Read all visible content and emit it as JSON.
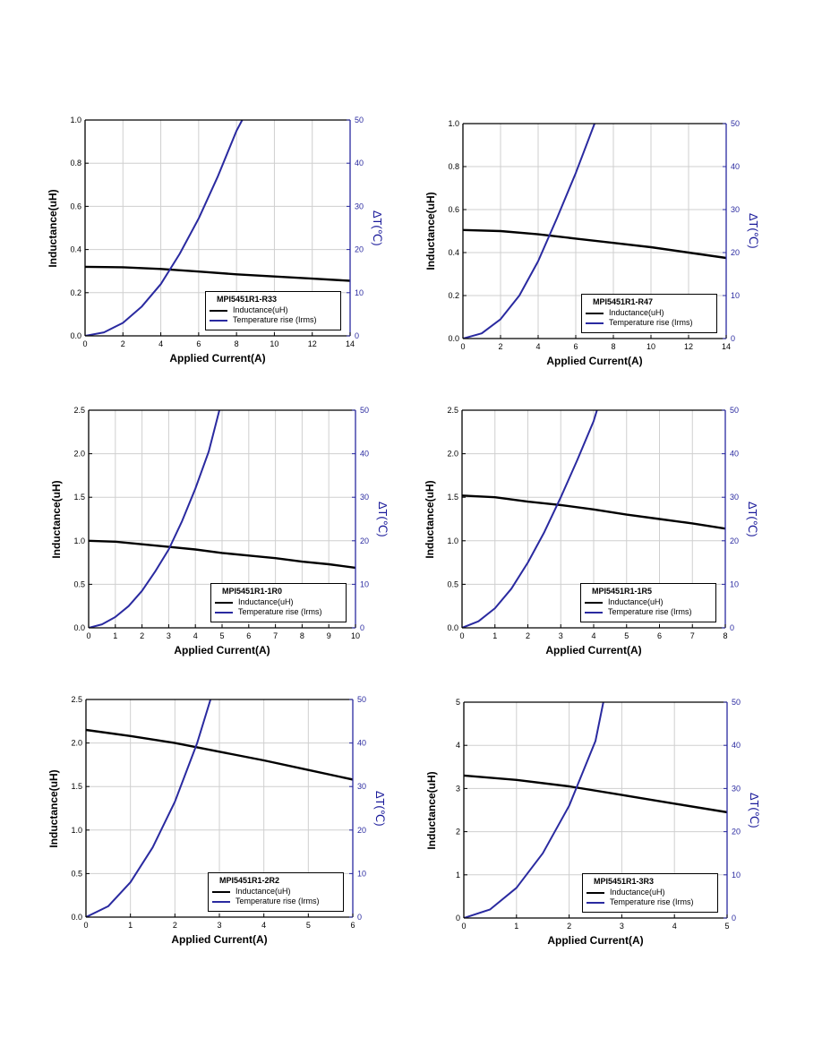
{
  "chart_data": [
    {
      "type": "line",
      "legend_title": "MPI5451R1-R33",
      "xlabel": "Applied Current(A)",
      "ylabel": "Inductance(uH)",
      "y2label": "∆T(℃)",
      "xlim": [
        0,
        14
      ],
      "xticks": [
        0,
        2,
        4,
        6,
        8,
        10,
        12,
        14
      ],
      "ylim": [
        0,
        1.0
      ],
      "yticks": [
        "0.0",
        "0.2",
        "0.4",
        "0.6",
        "0.8",
        "1.0"
      ],
      "y2lim": [
        0,
        50
      ],
      "y2ticks": [
        "0",
        "10",
        "20",
        "30",
        "40",
        "50"
      ],
      "grid": true,
      "legend_position": "bottom-right",
      "series": [
        {
          "name": "Inductance(uH)",
          "axis": "left",
          "color": "#000000",
          "x": [
            0,
            2,
            4,
            6,
            8,
            10,
            12,
            14
          ],
          "y": [
            0.32,
            0.318,
            0.31,
            0.298,
            0.285,
            0.275,
            0.265,
            0.255
          ]
        },
        {
          "name": "Temperature rise (Irms)",
          "axis": "right",
          "color": "#2a2aa0",
          "x": [
            0,
            1,
            2,
            3,
            4,
            5,
            6,
            7,
            8,
            8.3
          ],
          "y": [
            0,
            0.8,
            3,
            6.8,
            12,
            19,
            27.2,
            36.8,
            47.5,
            50
          ]
        }
      ]
    },
    {
      "type": "line",
      "legend_title": "MPI5451R1-R47",
      "xlabel": "Applied Current(A)",
      "ylabel": "Inductance(uH)",
      "y2label": "∆T(℃)",
      "xlim": [
        0,
        14
      ],
      "xticks": [
        0,
        2,
        4,
        6,
        8,
        10,
        12,
        14
      ],
      "ylim": [
        0,
        1.0
      ],
      "yticks": [
        "0.0",
        "0.2",
        "0.4",
        "0.6",
        "0.8",
        "1.0"
      ],
      "y2lim": [
        0,
        50
      ],
      "y2ticks": [
        "0",
        "10",
        "20",
        "30",
        "40",
        "50"
      ],
      "grid": true,
      "legend_position": "bottom-right",
      "series": [
        {
          "name": "Inductance(uH)",
          "axis": "left",
          "color": "#000000",
          "x": [
            0,
            2,
            4,
            6,
            8,
            10,
            12,
            14
          ],
          "y": [
            0.505,
            0.5,
            0.485,
            0.465,
            0.445,
            0.425,
            0.4,
            0.375
          ]
        },
        {
          "name": "Temperature rise (Irms)",
          "axis": "right",
          "color": "#2a2aa0",
          "x": [
            0,
            1,
            2,
            3,
            4,
            5,
            6,
            7
          ],
          "y": [
            0,
            1.2,
            4.5,
            10,
            18,
            28,
            38.5,
            50
          ]
        }
      ]
    },
    {
      "type": "line",
      "legend_title": "MPI5451R1-1R0",
      "xlabel": "Applied Current(A)",
      "ylabel": "Inductance(uH)",
      "y2label": "∆T(℃)",
      "xlim": [
        0,
        10
      ],
      "xticks": [
        0,
        1,
        2,
        3,
        4,
        5,
        6,
        7,
        8,
        9,
        10
      ],
      "ylim": [
        0,
        2.5
      ],
      "yticks": [
        "0.0",
        "0.5",
        "1.0",
        "1.5",
        "2.0",
        "2.5"
      ],
      "y2lim": [
        0,
        50
      ],
      "y2ticks": [
        "0",
        "10",
        "20",
        "30",
        "40",
        "50"
      ],
      "grid": true,
      "legend_position": "bottom-right",
      "series": [
        {
          "name": "Inductance(uH)",
          "axis": "left",
          "color": "#000000",
          "x": [
            0,
            1,
            2,
            3,
            4,
            5,
            6,
            7,
            8,
            9,
            10
          ],
          "y": [
            1.0,
            0.99,
            0.96,
            0.93,
            0.9,
            0.86,
            0.83,
            0.8,
            0.76,
            0.73,
            0.69
          ]
        },
        {
          "name": "Temperature rise (Irms)",
          "axis": "right",
          "color": "#2a2aa0",
          "x": [
            0,
            0.5,
            1,
            1.5,
            2,
            2.5,
            3,
            3.5,
            4,
            4.5,
            4.9
          ],
          "y": [
            0,
            0.8,
            2.5,
            5,
            8.5,
            13,
            18,
            24.5,
            32,
            40.5,
            50
          ]
        }
      ]
    },
    {
      "type": "line",
      "legend_title": "MPI5451R1-1R5",
      "xlabel": "Applied Current(A)",
      "ylabel": "Inductance(uH)",
      "y2label": "∆T(℃)",
      "xlim": [
        0,
        8
      ],
      "xticks": [
        0,
        1,
        2,
        3,
        4,
        5,
        6,
        7,
        8
      ],
      "ylim": [
        0,
        2.5
      ],
      "yticks": [
        "0.0",
        "0.5",
        "1.0",
        "1.5",
        "2.0",
        "2.5"
      ],
      "y2lim": [
        0,
        50
      ],
      "y2ticks": [
        "0",
        "10",
        "20",
        "30",
        "40",
        "50"
      ],
      "grid": true,
      "legend_position": "bottom-right",
      "series": [
        {
          "name": "Inductance(uH)",
          "axis": "left",
          "color": "#000000",
          "x": [
            0,
            1,
            2,
            3,
            4,
            5,
            6,
            7,
            8
          ],
          "y": [
            1.52,
            1.5,
            1.45,
            1.41,
            1.36,
            1.3,
            1.25,
            1.2,
            1.14
          ]
        },
        {
          "name": "Temperature rise (Irms)",
          "axis": "right",
          "color": "#2a2aa0",
          "x": [
            0,
            0.5,
            1,
            1.5,
            2,
            2.5,
            3,
            3.5,
            4,
            4.1
          ],
          "y": [
            0,
            1.5,
            4.5,
            9,
            15,
            22,
            30,
            38.5,
            47.5,
            50
          ]
        }
      ]
    },
    {
      "type": "line",
      "legend_title": "MPI5451R1-2R2",
      "xlabel": "Applied Current(A)",
      "ylabel": "Inductance(uH)",
      "y2label": "∆T(℃)",
      "xlim": [
        0,
        6
      ],
      "xticks": [
        0,
        1,
        2,
        3,
        4,
        5,
        6
      ],
      "ylim": [
        0,
        2.5
      ],
      "yticks": [
        "0.0",
        "0.5",
        "1.0",
        "1.5",
        "2.0",
        "2.5"
      ],
      "y2lim": [
        0,
        50
      ],
      "y2ticks": [
        "0",
        "10",
        "20",
        "30",
        "40",
        "50"
      ],
      "grid": true,
      "legend_position": "bottom-right",
      "series": [
        {
          "name": "Inductance(uH)",
          "axis": "left",
          "color": "#000000",
          "x": [
            0,
            1,
            2,
            3,
            4,
            5,
            6
          ],
          "y": [
            2.15,
            2.08,
            2.0,
            1.9,
            1.8,
            1.69,
            1.58
          ]
        },
        {
          "name": "Temperature rise (Irms)",
          "axis": "right",
          "color": "#2a2aa0",
          "x": [
            0,
            0.5,
            1,
            1.5,
            2,
            2.5,
            2.8
          ],
          "y": [
            0,
            2.5,
            8,
            16,
            26.5,
            40,
            50
          ]
        }
      ]
    },
    {
      "type": "line",
      "legend_title": "MPI5451R1-3R3",
      "xlabel": "Applied Current(A)",
      "ylabel": "Inductance(uH)",
      "y2label": "∆T(℃)",
      "xlim": [
        0,
        5
      ],
      "xticks": [
        0,
        1,
        2,
        3,
        4,
        5
      ],
      "ylim": [
        0,
        5
      ],
      "yticks": [
        "0",
        "1",
        "2",
        "3",
        "4",
        "5"
      ],
      "y2lim": [
        0,
        50
      ],
      "y2ticks": [
        "0",
        "10",
        "20",
        "30",
        "40",
        "50"
      ],
      "grid": true,
      "legend_position": "bottom-right",
      "series": [
        {
          "name": "Inductance(uH)",
          "axis": "left",
          "color": "#000000",
          "x": [
            0,
            1,
            2,
            3,
            4,
            5
          ],
          "y": [
            3.3,
            3.2,
            3.05,
            2.85,
            2.65,
            2.45
          ]
        },
        {
          "name": "Temperature rise (Irms)",
          "axis": "right",
          "color": "#2a2aa0",
          "x": [
            0,
            0.5,
            1,
            1.5,
            2,
            2.5,
            2.65
          ],
          "y": [
            0,
            2,
            7,
            15,
            26,
            41,
            50
          ]
        }
      ]
    }
  ]
}
